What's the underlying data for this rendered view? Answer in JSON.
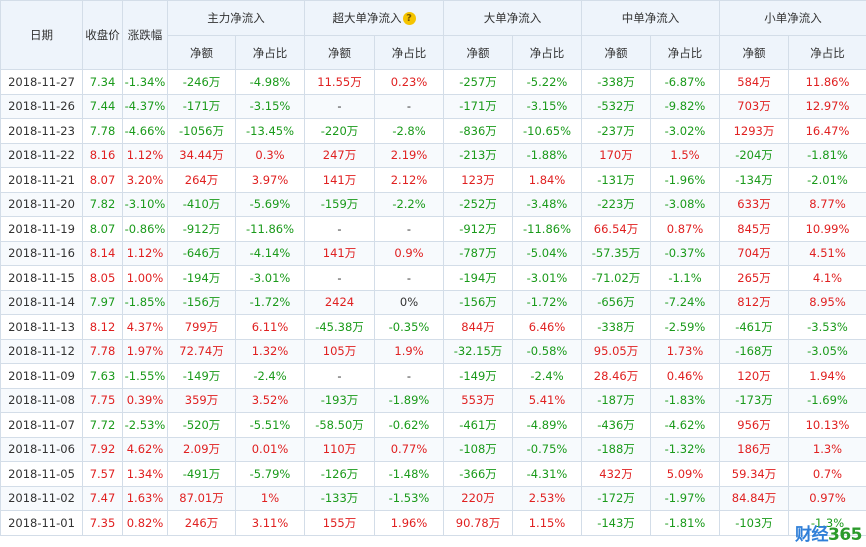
{
  "headers": {
    "date": "日期",
    "close": "收盘价",
    "change": "涨跌幅",
    "groups": [
      "主力净流入",
      "超大单净流入",
      "大单净流入",
      "中单净流入",
      "小单净流入"
    ],
    "sub_amount": "净额",
    "sub_ratio": "净占比"
  },
  "rows": [
    [
      "2018-11-27",
      "7.34",
      "-1.34%",
      "-246万",
      "-4.98%",
      "11.55万",
      "0.23%",
      "-257万",
      "-5.22%",
      "-338万",
      "-6.87%",
      "584万",
      "11.86%"
    ],
    [
      "2018-11-26",
      "7.44",
      "-4.37%",
      "-171万",
      "-3.15%",
      "-",
      "-",
      "-171万",
      "-3.15%",
      "-532万",
      "-9.82%",
      "703万",
      "12.97%"
    ],
    [
      "2018-11-23",
      "7.78",
      "-4.66%",
      "-1056万",
      "-13.45%",
      "-220万",
      "-2.8%",
      "-836万",
      "-10.65%",
      "-237万",
      "-3.02%",
      "1293万",
      "16.47%"
    ],
    [
      "2018-11-22",
      "8.16",
      "1.12%",
      "34.44万",
      "0.3%",
      "247万",
      "2.19%",
      "-213万",
      "-1.88%",
      "170万",
      "1.5%",
      "-204万",
      "-1.81%"
    ],
    [
      "2018-11-21",
      "8.07",
      "3.20%",
      "264万",
      "3.97%",
      "141万",
      "2.12%",
      "123万",
      "1.84%",
      "-131万",
      "-1.96%",
      "-134万",
      "-2.01%"
    ],
    [
      "2018-11-20",
      "7.82",
      "-3.10%",
      "-410万",
      "-5.69%",
      "-159万",
      "-2.2%",
      "-252万",
      "-3.48%",
      "-223万",
      "-3.08%",
      "633万",
      "8.77%"
    ],
    [
      "2018-11-19",
      "8.07",
      "-0.86%",
      "-912万",
      "-11.86%",
      "-",
      "-",
      "-912万",
      "-11.86%",
      "66.54万",
      "0.87%",
      "845万",
      "10.99%"
    ],
    [
      "2018-11-16",
      "8.14",
      "1.12%",
      "-646万",
      "-4.14%",
      "141万",
      "0.9%",
      "-787万",
      "-5.04%",
      "-57.35万",
      "-0.37%",
      "704万",
      "4.51%"
    ],
    [
      "2018-11-15",
      "8.05",
      "1.00%",
      "-194万",
      "-3.01%",
      "-",
      "-",
      "-194万",
      "-3.01%",
      "-71.02万",
      "-1.1%",
      "265万",
      "4.1%"
    ],
    [
      "2018-11-14",
      "7.97",
      "-1.85%",
      "-156万",
      "-1.72%",
      "2424",
      "0%",
      "-156万",
      "-1.72%",
      "-656万",
      "-7.24%",
      "812万",
      "8.95%"
    ],
    [
      "2018-11-13",
      "8.12",
      "4.37%",
      "799万",
      "6.11%",
      "-45.38万",
      "-0.35%",
      "844万",
      "6.46%",
      "-338万",
      "-2.59%",
      "-461万",
      "-3.53%"
    ],
    [
      "2018-11-12",
      "7.78",
      "1.97%",
      "72.74万",
      "1.32%",
      "105万",
      "1.9%",
      "-32.15万",
      "-0.58%",
      "95.05万",
      "1.73%",
      "-168万",
      "-3.05%"
    ],
    [
      "2018-11-09",
      "7.63",
      "-1.55%",
      "-149万",
      "-2.4%",
      "-",
      "-",
      "-149万",
      "-2.4%",
      "28.46万",
      "0.46%",
      "120万",
      "1.94%"
    ],
    [
      "2018-11-08",
      "7.75",
      "0.39%",
      "359万",
      "3.52%",
      "-193万",
      "-1.89%",
      "553万",
      "5.41%",
      "-187万",
      "-1.83%",
      "-173万",
      "-1.69%"
    ],
    [
      "2018-11-07",
      "7.72",
      "-2.53%",
      "-520万",
      "-5.51%",
      "-58.50万",
      "-0.62%",
      "-461万",
      "-4.89%",
      "-436万",
      "-4.62%",
      "956万",
      "10.13%"
    ],
    [
      "2018-11-06",
      "7.92",
      "4.62%",
      "2.09万",
      "0.01%",
      "110万",
      "0.77%",
      "-108万",
      "-0.75%",
      "-188万",
      "-1.32%",
      "186万",
      "1.3%"
    ],
    [
      "2018-11-05",
      "7.57",
      "1.34%",
      "-491万",
      "-5.79%",
      "-126万",
      "-1.48%",
      "-366万",
      "-4.31%",
      "432万",
      "5.09%",
      "59.34万",
      "0.7%"
    ],
    [
      "2018-11-02",
      "7.47",
      "1.63%",
      "87.01万",
      "1%",
      "-133万",
      "-1.53%",
      "220万",
      "2.53%",
      "-172万",
      "-1.97%",
      "84.84万",
      "0.97%"
    ],
    [
      "2018-11-01",
      "7.35",
      "0.82%",
      "246万",
      "3.11%",
      "155万",
      "1.96%",
      "90.78万",
      "1.15%",
      "-143万",
      "-1.81%",
      "-103万",
      "-1.3%"
    ]
  ],
  "colors": {
    "up": "#e02020",
    "down": "#1a9a1a",
    "header_bg": "#eef4fb",
    "border": "#d3dde8"
  },
  "logo": {
    "text": "财经",
    "num": "365",
    "icon": "caijing365-logo"
  }
}
